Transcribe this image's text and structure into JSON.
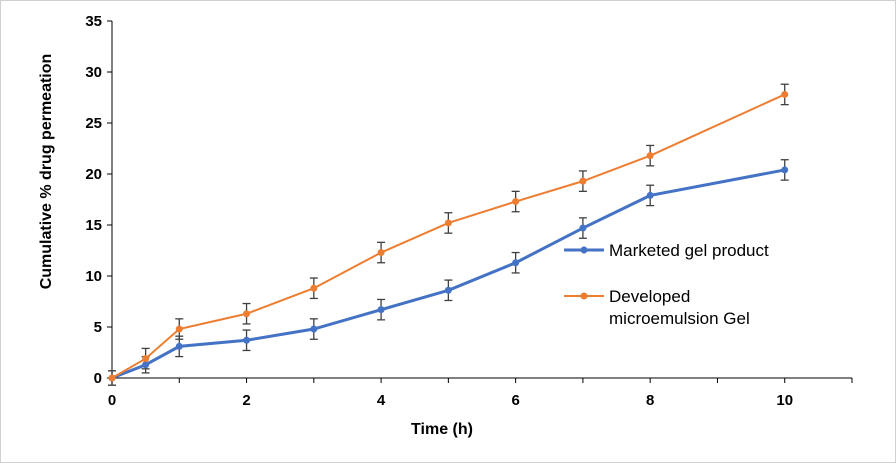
{
  "chart_data": {
    "type": "line",
    "title": "",
    "xlabel": "Time (h)",
    "ylabel": "Cumulative % drug permeation",
    "xlim": [
      0,
      11
    ],
    "ylim": [
      0,
      35
    ],
    "x_ticks": [
      0,
      2,
      4,
      6,
      8,
      10
    ],
    "y_ticks": [
      0,
      5,
      10,
      15,
      20,
      25,
      30,
      35
    ],
    "grid": false,
    "legend_position": "right",
    "series": [
      {
        "name": "Marketed gel product",
        "color": "#4472C4",
        "x": [
          0,
          0.5,
          1,
          2,
          3,
          4,
          5,
          6,
          7,
          8,
          10
        ],
        "y": [
          0,
          1.3,
          3.1,
          3.7,
          4.8,
          6.7,
          8.6,
          11.3,
          14.7,
          17.9,
          20.4
        ],
        "error": [
          0.7,
          0.8,
          1.0,
          1.0,
          1.0,
          1.0,
          1.0,
          1.0,
          1.0,
          1.0,
          1.0
        ]
      },
      {
        "name": "Developed microemulsion Gel",
        "name_lines": [
          "Developed",
          "microemulsion Gel"
        ],
        "color": "#ED7D31",
        "x": [
          0,
          0.5,
          1,
          2,
          3,
          4,
          5,
          6,
          7,
          8,
          10
        ],
        "y": [
          0,
          1.9,
          4.8,
          6.3,
          8.8,
          12.3,
          15.2,
          17.3,
          19.3,
          21.8,
          27.8
        ],
        "error": [
          0.7,
          1.0,
          1.0,
          1.0,
          1.0,
          1.0,
          1.0,
          1.0,
          1.0,
          1.0,
          1.0
        ]
      }
    ]
  }
}
